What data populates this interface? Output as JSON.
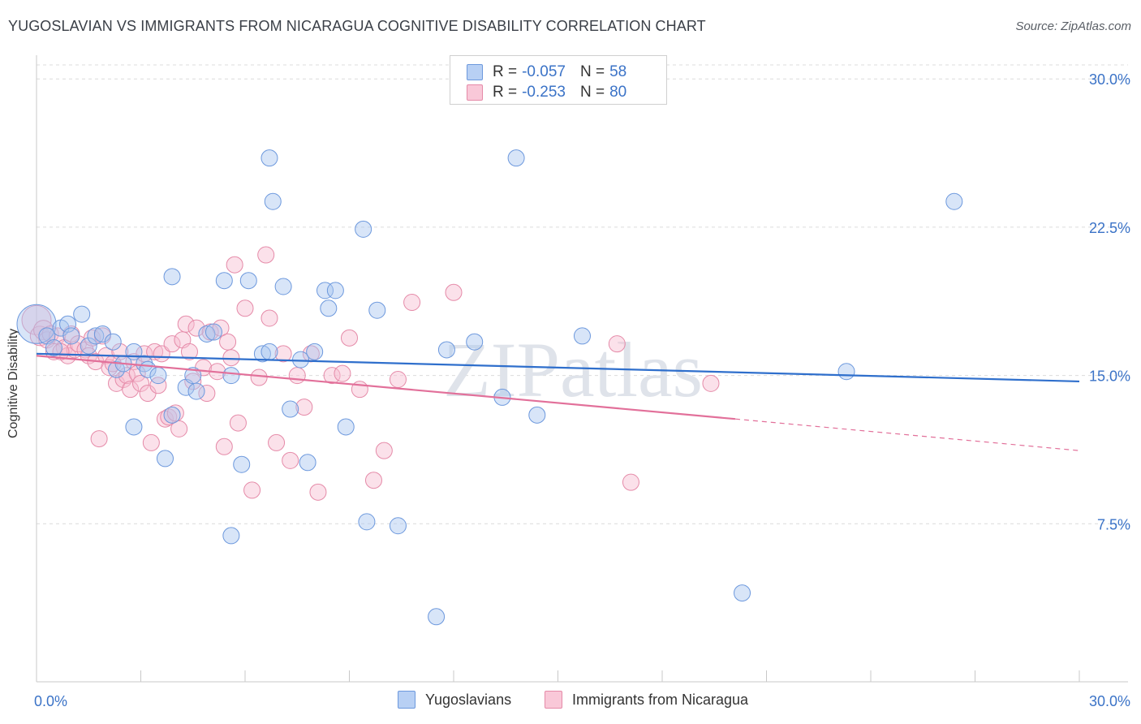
{
  "title": "YUGOSLAVIAN VS IMMIGRANTS FROM NICARAGUA COGNITIVE DISABILITY CORRELATION CHART",
  "source": "Source: ZipAtlas.com",
  "watermark": "ZIPatlas",
  "legend": {
    "row1": {
      "r_label": "R = ",
      "r_value": "-0.057",
      "n_label": "N = ",
      "n_value": "58"
    },
    "row2": {
      "r_label": "R = ",
      "r_value": "-0.253",
      "n_label": "N = ",
      "n_value": "80"
    }
  },
  "bottom_legend": {
    "series1": "Yugoslavians",
    "series2": "Immigrants from Nicaragua"
  },
  "colors": {
    "blue_fill": "#a9c6f0",
    "blue_stroke": "#6c98dd",
    "blue_line": "#2f6fcc",
    "pink_fill": "#f7bcd0",
    "pink_stroke": "#e58aa8",
    "pink_line": "#e2709a",
    "axis_text": "#3b73c7"
  },
  "chart_data": {
    "type": "scatter",
    "title": "YUGOSLAVIAN VS IMMIGRANTS FROM NICARAGUA COGNITIVE DISABILITY CORRELATION CHART",
    "xlabel": "",
    "ylabel": "Cognitive Disability",
    "xlim": [
      0,
      30
    ],
    "ylim": [
      0,
      31.2
    ],
    "x_tick_labels": [
      "0.0%",
      "30.0%"
    ],
    "y_ticks": [
      7.5,
      15.0,
      22.5,
      30.0
    ],
    "y_tick_labels": [
      "7.5%",
      "15.0%",
      "22.5%",
      "30.0%"
    ],
    "grid": "horizontal dashed",
    "legend_position": "top-center",
    "series": [
      {
        "name": "Yugoslavians",
        "r": -0.057,
        "n": 58,
        "trend": {
          "x": [
            0,
            30
          ],
          "y": [
            16.1,
            14.7
          ]
        },
        "points": [
          [
            0.0,
            17.6,
            24
          ],
          [
            0.3,
            17.0,
            10
          ],
          [
            0.5,
            16.4,
            10
          ],
          [
            0.7,
            17.4,
            10
          ],
          [
            0.9,
            17.6,
            10
          ],
          [
            1.0,
            17.0,
            10
          ],
          [
            1.3,
            18.1,
            10
          ],
          [
            1.5,
            16.5,
            10
          ],
          [
            1.7,
            17.0,
            10
          ],
          [
            1.9,
            17.1,
            10
          ],
          [
            2.2,
            16.7,
            10
          ],
          [
            2.3,
            15.3,
            10
          ],
          [
            2.5,
            15.6,
            10
          ],
          [
            2.8,
            16.2,
            10
          ],
          [
            3.1,
            15.6,
            10
          ],
          [
            3.2,
            15.3,
            10
          ],
          [
            3.5,
            15.0,
            10
          ],
          [
            2.8,
            12.4,
            10
          ],
          [
            3.7,
            10.8,
            10
          ],
          [
            3.9,
            13.0,
            10
          ],
          [
            3.9,
            20.0,
            10
          ],
          [
            4.3,
            14.4,
            10
          ],
          [
            4.5,
            15.0,
            10
          ],
          [
            4.6,
            14.2,
            10
          ],
          [
            4.9,
            17.1,
            10
          ],
          [
            5.1,
            17.2,
            10
          ],
          [
            5.4,
            19.8,
            10
          ],
          [
            5.6,
            15.0,
            10
          ],
          [
            5.6,
            6.9,
            10
          ],
          [
            5.9,
            10.5,
            10
          ],
          [
            6.1,
            19.8,
            10
          ],
          [
            6.5,
            16.1,
            10
          ],
          [
            6.7,
            16.2,
            10
          ],
          [
            6.7,
            26.0,
            10
          ],
          [
            6.8,
            23.8,
            10
          ],
          [
            7.1,
            19.5,
            10
          ],
          [
            7.3,
            13.3,
            10
          ],
          [
            7.6,
            15.8,
            10
          ],
          [
            7.8,
            10.6,
            10
          ],
          [
            8.0,
            16.2,
            10
          ],
          [
            8.3,
            19.3,
            10
          ],
          [
            8.4,
            18.4,
            10
          ],
          [
            8.6,
            19.3,
            10
          ],
          [
            8.9,
            12.4,
            10
          ],
          [
            9.4,
            22.4,
            10
          ],
          [
            9.5,
            7.6,
            10
          ],
          [
            9.8,
            18.3,
            10
          ],
          [
            10.4,
            7.4,
            10
          ],
          [
            11.5,
            2.8,
            10
          ],
          [
            11.8,
            16.3,
            10
          ],
          [
            12.6,
            16.7,
            10
          ],
          [
            13.4,
            13.9,
            10
          ],
          [
            13.8,
            26.0,
            10
          ],
          [
            14.4,
            13.0,
            10
          ],
          [
            15.7,
            17.0,
            10
          ],
          [
            20.3,
            4.0,
            10
          ],
          [
            23.3,
            15.2,
            10
          ],
          [
            26.4,
            23.8,
            10
          ]
        ]
      },
      {
        "name": "Immigrants from Nicaragua",
        "r": -0.253,
        "n": 80,
        "trend": {
          "x": [
            0,
            20.1
          ],
          "y": [
            16.0,
            12.8
          ]
        },
        "trend_dashed": {
          "x": [
            20.1,
            30
          ],
          "y": [
            12.8,
            11.2
          ]
        },
        "points": [
          [
            0.0,
            17.8,
            18
          ],
          [
            0.1,
            17.0,
            12
          ],
          [
            0.2,
            17.3,
            12
          ],
          [
            0.3,
            16.8,
            10
          ],
          [
            0.4,
            17.1,
            10
          ],
          [
            0.5,
            16.2,
            10
          ],
          [
            0.6,
            17.0,
            10
          ],
          [
            0.8,
            16.4,
            10
          ],
          [
            0.9,
            16.0,
            10
          ],
          [
            1.0,
            17.1,
            10
          ],
          [
            1.1,
            16.3,
            10
          ],
          [
            1.2,
            16.6,
            10
          ],
          [
            1.4,
            16.3,
            10
          ],
          [
            1.5,
            16.0,
            10
          ],
          [
            1.6,
            16.9,
            10
          ],
          [
            1.7,
            15.7,
            10
          ],
          [
            1.8,
            11.8,
            10
          ],
          [
            2.0,
            16.0,
            10
          ],
          [
            2.1,
            15.4,
            10
          ],
          [
            2.2,
            15.6,
            10
          ],
          [
            2.3,
            14.6,
            10
          ],
          [
            2.4,
            16.2,
            10
          ],
          [
            2.5,
            14.8,
            10
          ],
          [
            2.6,
            15.0,
            10
          ],
          [
            2.7,
            14.3,
            10
          ],
          [
            2.8,
            15.7,
            10
          ],
          [
            2.9,
            15.1,
            10
          ],
          [
            3.0,
            14.6,
            10
          ],
          [
            3.1,
            16.1,
            10
          ],
          [
            3.2,
            14.1,
            10
          ],
          [
            3.3,
            11.6,
            10
          ],
          [
            3.4,
            16.2,
            10
          ],
          [
            3.5,
            14.5,
            10
          ],
          [
            3.6,
            16.1,
            10
          ],
          [
            3.7,
            12.8,
            10
          ],
          [
            3.8,
            12.9,
            10
          ],
          [
            3.9,
            16.6,
            10
          ],
          [
            4.0,
            13.1,
            10
          ],
          [
            4.1,
            12.3,
            10
          ],
          [
            4.2,
            16.8,
            10
          ],
          [
            4.3,
            17.6,
            10
          ],
          [
            4.4,
            16.2,
            10
          ],
          [
            4.5,
            14.7,
            10
          ],
          [
            4.6,
            17.4,
            10
          ],
          [
            4.8,
            15.4,
            10
          ],
          [
            4.9,
            14.1,
            10
          ],
          [
            5.0,
            17.2,
            10
          ],
          [
            5.2,
            15.2,
            10
          ],
          [
            5.3,
            17.4,
            10
          ],
          [
            5.4,
            11.4,
            10
          ],
          [
            5.5,
            16.7,
            10
          ],
          [
            5.6,
            15.9,
            10
          ],
          [
            5.7,
            20.6,
            10
          ],
          [
            5.8,
            12.6,
            10
          ],
          [
            6.0,
            18.4,
            10
          ],
          [
            6.2,
            9.2,
            10
          ],
          [
            6.4,
            14.9,
            10
          ],
          [
            6.6,
            21.1,
            10
          ],
          [
            6.7,
            17.9,
            10
          ],
          [
            6.9,
            11.6,
            10
          ],
          [
            7.1,
            16.1,
            10
          ],
          [
            7.3,
            10.7,
            10
          ],
          [
            7.5,
            15.0,
            10
          ],
          [
            7.7,
            13.4,
            10
          ],
          [
            7.9,
            16.1,
            10
          ],
          [
            8.1,
            9.1,
            10
          ],
          [
            8.5,
            15.0,
            10
          ],
          [
            8.8,
            15.1,
            10
          ],
          [
            9.0,
            16.9,
            10
          ],
          [
            9.3,
            14.3,
            10
          ],
          [
            9.7,
            9.7,
            10
          ],
          [
            10.0,
            11.2,
            10
          ],
          [
            10.4,
            14.8,
            10
          ],
          [
            10.8,
            18.7,
            10
          ],
          [
            12.0,
            19.2,
            10
          ],
          [
            16.7,
            16.6,
            10
          ],
          [
            17.1,
            9.6,
            10
          ],
          [
            19.4,
            14.6,
            10
          ],
          [
            0.7,
            16.2,
            10
          ],
          [
            1.9,
            17.0,
            10
          ]
        ]
      }
    ]
  }
}
